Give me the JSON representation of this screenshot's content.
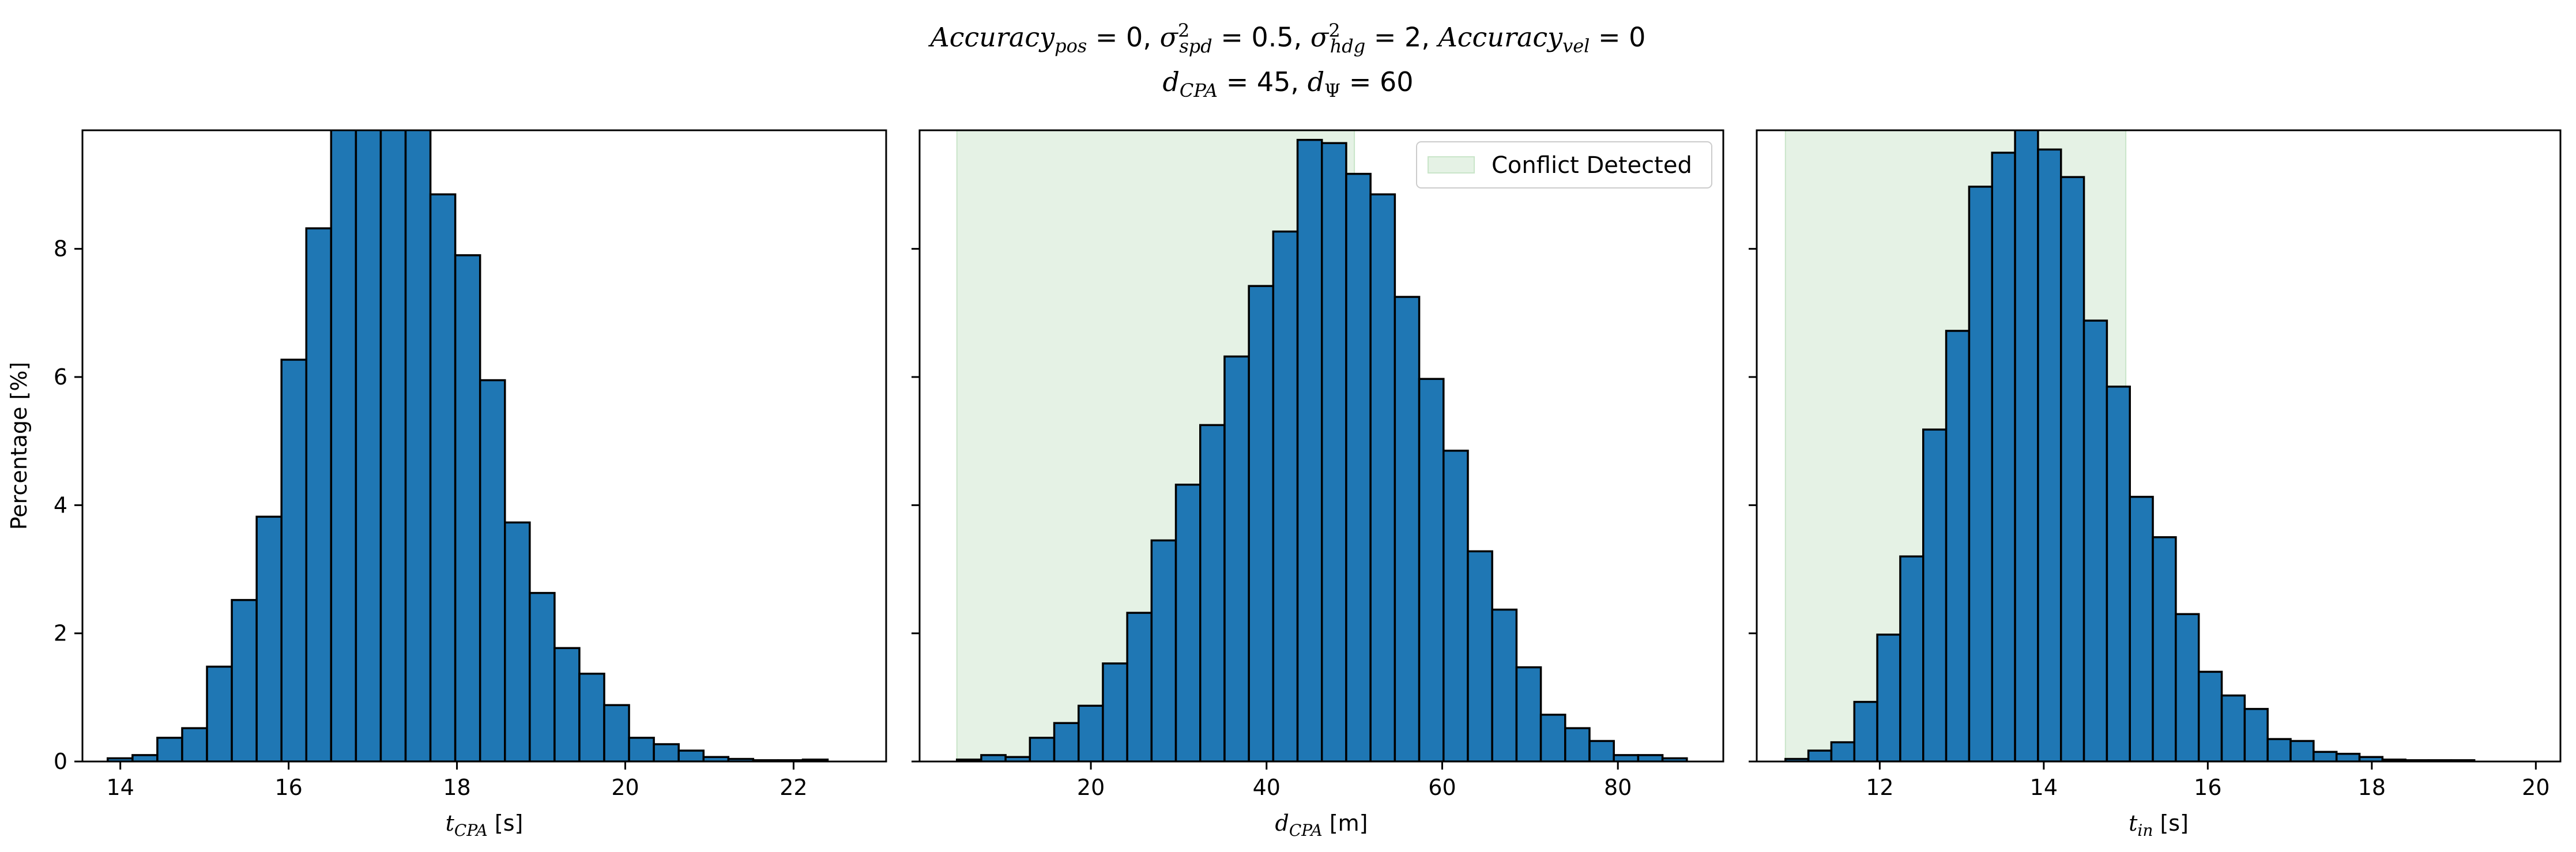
{
  "figure": {
    "title_line1": {
      "acc_pos_name": "Accuracy",
      "acc_pos_sub": "pos",
      "acc_pos_val": " = 0, ",
      "sig_spd_sub": "spd",
      "sig_spd_val": " = 0.5, ",
      "sig_hdg_sub": "hdg",
      "sig_hdg_val": " = 2, ",
      "acc_vel_name": "Accuracy",
      "acc_vel_sub": "vel",
      "acc_vel_val": " = 0"
    },
    "title_line2": {
      "dcpa_sub": "CPA",
      "dcpa_val": " = 45, ",
      "dpsi_sub": "Ψ",
      "dpsi_val": " = 60"
    }
  },
  "colors": {
    "bar": "#1f77b4",
    "edge": "#000000",
    "span": "#e5f2e5",
    "span_edge": "#c9e5c9"
  },
  "chart_data": [
    {
      "type": "bar",
      "xlabel_var": "t",
      "xlabel_sub": "CPA",
      "xlabel_unit": " [s]",
      "ylabel": "Percentage [%]",
      "xlim": [
        13.55,
        23.1
      ],
      "ylim": [
        0,
        9.85
      ],
      "xticks": [
        14,
        16,
        18,
        20,
        22
      ],
      "yticks": [
        0,
        2,
        4,
        6,
        8
      ],
      "bin_start": 13.85,
      "bin_width": 0.295,
      "values": [
        0.05,
        0.1,
        0.37,
        0.52,
        1.48,
        2.52,
        3.82,
        6.27,
        8.32,
        10.3,
        10.5,
        10.4,
        9.95,
        8.85,
        7.9,
        5.95,
        3.73,
        2.63,
        1.77,
        1.37,
        0.88,
        0.37,
        0.27,
        0.17,
        0.07,
        0.04,
        0.02,
        0.02,
        0.03
      ],
      "span": null
    },
    {
      "type": "bar",
      "xlabel_var": "d",
      "xlabel_sub": "CPA",
      "xlabel_unit": " [m]",
      "xlim": [
        0.5,
        92.0
      ],
      "ylim": [
        0,
        9.85
      ],
      "xticks": [
        20,
        40,
        60,
        80
      ],
      "yticks": [
        0,
        2,
        4,
        6,
        8
      ],
      "bin_start": 4.75,
      "bin_width": 2.77,
      "values": [
        0.03,
        0.1,
        0.07,
        0.37,
        0.6,
        0.87,
        1.53,
        2.32,
        3.45,
        4.32,
        5.25,
        6.32,
        7.42,
        8.27,
        9.7,
        9.65,
        9.17,
        8.85,
        7.25,
        5.97,
        4.85,
        3.28,
        2.37,
        1.47,
        0.73,
        0.52,
        0.32,
        0.1,
        0.1,
        0.05
      ],
      "span": [
        4.75,
        50
      ],
      "legend": {
        "label": "Conflict Detected",
        "placement": "top-right"
      }
    },
    {
      "type": "bar",
      "xlabel_var": "t",
      "xlabel_sub": "in",
      "xlabel_unit": " [s]",
      "xlim": [
        10.5,
        20.3
      ],
      "ylim": [
        0,
        9.85
      ],
      "xticks": [
        12,
        14,
        16,
        18,
        20
      ],
      "yticks": [
        0,
        2,
        4,
        6,
        8
      ],
      "bin_start": 10.85,
      "bin_width": 0.28,
      "values": [
        0.04,
        0.17,
        0.3,
        0.93,
        1.98,
        3.2,
        5.18,
        6.72,
        8.97,
        9.5,
        10.0,
        9.55,
        9.12,
        6.88,
        5.85,
        4.13,
        3.5,
        2.3,
        1.4,
        1.03,
        0.82,
        0.35,
        0.32,
        0.15,
        0.12,
        0.07,
        0.03,
        0.02,
        0.02,
        0.02
      ],
      "span": [
        10.85,
        15
      ]
    }
  ]
}
